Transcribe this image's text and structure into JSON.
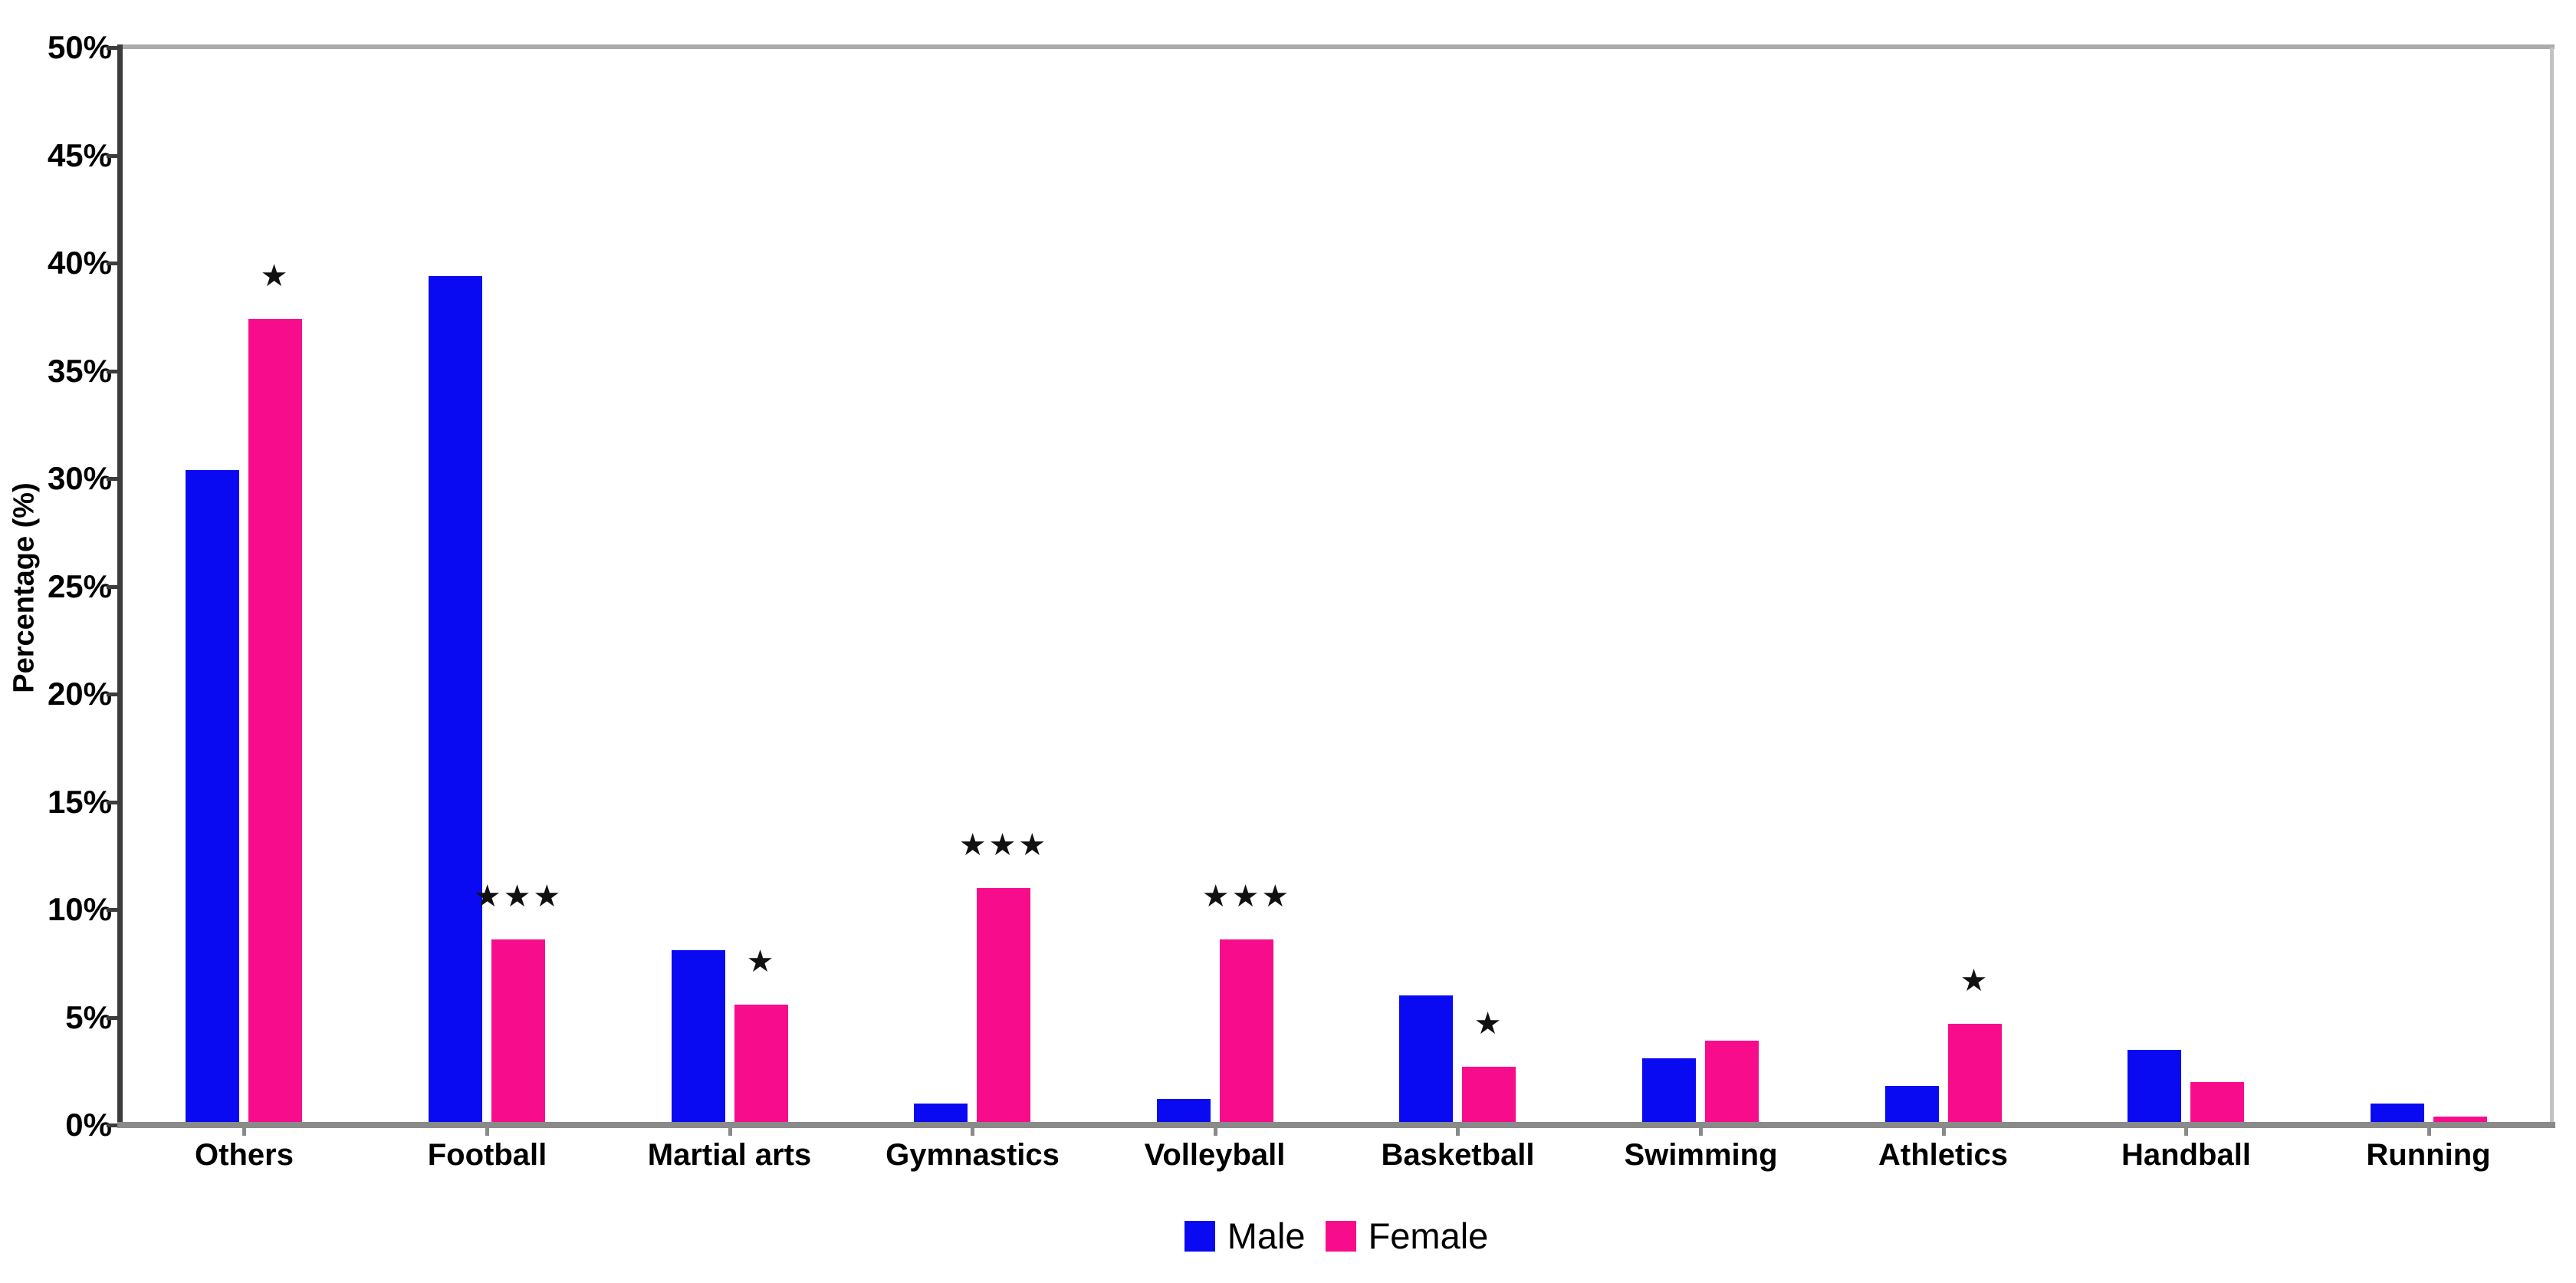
{
  "chart_data": {
    "type": "bar",
    "title": "",
    "xlabel": "",
    "ylabel": "Percentage (%)",
    "ylim": [
      0,
      50
    ],
    "ytick_step": 5,
    "ytick_suffix": "%",
    "grid": false,
    "legend_position": "bottom-center",
    "categories": [
      "Others",
      "Football",
      "Martial arts",
      "Gymnastics",
      "Volleyball",
      "Basketball",
      "Swimming",
      "Athletics",
      "Handball",
      "Running"
    ],
    "series": [
      {
        "name": "Male",
        "color": "#0a0af2",
        "values": [
          30.4,
          39.4,
          8.1,
          1.0,
          1.2,
          6.0,
          3.1,
          1.8,
          3.5,
          1.0
        ]
      },
      {
        "name": "Female",
        "color": "#f70d8c",
        "values": [
          37.4,
          8.6,
          5.6,
          11.0,
          8.6,
          2.7,
          3.9,
          4.7,
          2.0,
          0.4
        ]
      }
    ],
    "significance_markers": {
      "symbol_glyph": "★",
      "per_category": [
        "*",
        "***",
        "*",
        "***",
        "***",
        "*",
        "",
        "*",
        "",
        ""
      ]
    },
    "colors": {
      "axis_bottom": "#8a8a8a",
      "spine_left": "#3c3c3c",
      "border_top": "#ababab",
      "border_right": "#c2c2c2",
      "text": "#000000",
      "background": "#ffffff"
    }
  }
}
